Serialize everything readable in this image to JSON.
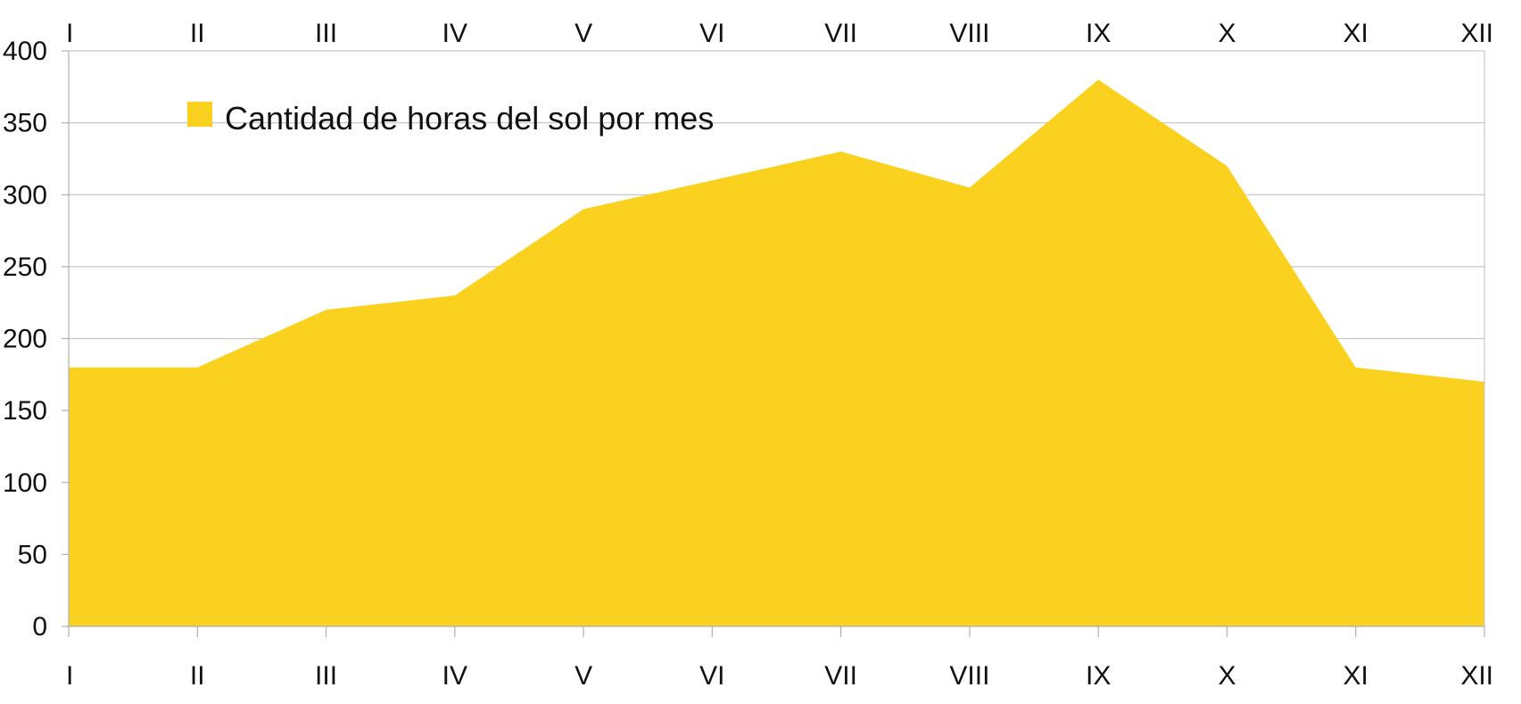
{
  "chart_data": {
    "type": "area",
    "categories": [
      "I",
      "II",
      "III",
      "IV",
      "V",
      "VI",
      "VII",
      "VIII",
      "IX",
      "X",
      "XI",
      "XII"
    ],
    "series": [
      {
        "name": "Cantidad de horas del sol por mes",
        "values": [
          180,
          180,
          220,
          230,
          290,
          310,
          330,
          305,
          380,
          320,
          180,
          170
        ],
        "color": "#fbd120"
      }
    ],
    "ylim": [
      0,
      400
    ],
    "yticks": [
      0,
      50,
      100,
      150,
      200,
      250,
      300,
      350,
      400
    ],
    "grid": true,
    "legend_position": "top-left",
    "x_tick_labels_top": true,
    "x_tick_labels_bottom": true
  }
}
